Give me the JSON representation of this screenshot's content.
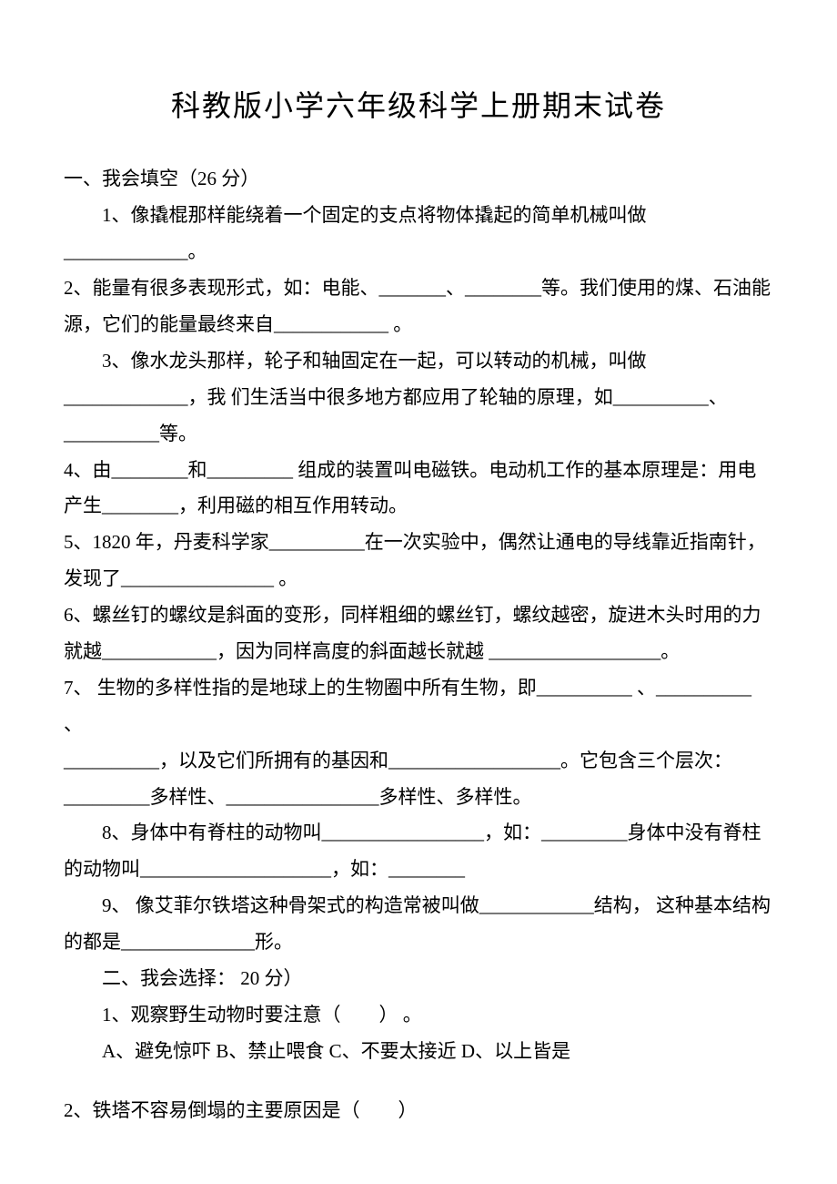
{
  "title": "科教版小学六年级科学上册期末试卷",
  "section1_head": "一、我会填空（26 分）",
  "q1": "1、像撬棍那样能绕着一个固定的支点将物体撬起的简单机械叫做_____________。",
  "q2": " 2、能量有很多表现形式，如：电能、_______、________等。我们使用的煤、石油能源，它们的能量最终来自____________ 。",
  "q3": "3、像水龙头那样，轮子和轴固定在一起，可以转动的机械，叫做_____________，我 们生活当中很多地方都应用了轮轴的原理，如__________、__________等。",
  "q4": "4、由________和_________ 组成的装置叫电磁铁。电动机工作的基本原理是：用电产生________，利用磁的相互作用转动。",
  "q5": "5、1820 年，丹麦科学家__________在一次实验中，偶然让通电的导线靠近指南针，发现了________________ 。",
  "q6": "6、螺丝钉的螺纹是斜面的变形，同样粗细的螺丝钉，螺纹越密，旋进木头时用的力就越____________，因为同样高度的斜面越长就越 __________________。",
  "q7": "7、 生物的多样性指的是地球上的生物圈中所有生物，即__________ 、__________ 、",
  "q7b": "__________，以及它们所拥有的基因和__________________。它包含三个层次：_________多样性、________________多样性、多样性。",
  "q8": "8、身体中有脊柱的动物叫_________________，如：_________身体中没有脊柱的动物叫____________________，如：________",
  "q9": "9、 像艾菲尔铁塔这种骨架式的构造常被叫做____________结构， 这种基本结构的都是______________形。",
  "section2_head": "二、我会选择：  20 分）",
  "s2q1": "1、观察野生动物时要注意（　　） 。",
  "s2q1_opts": "  A、避免惊吓    B、禁止喂食  C、不要太接近  D、以上皆是",
  "s2q2": "2、铁塔不容易倒塌的主要原因是（　　）"
}
